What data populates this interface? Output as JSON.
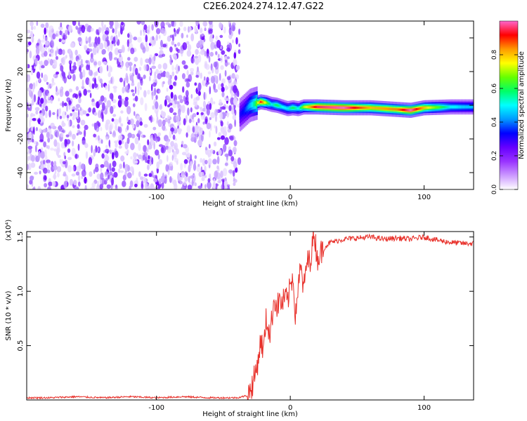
{
  "title": "C2E6.2024.274.12.47.G22",
  "chart_data": [
    {
      "type": "heatmap",
      "title": "C2E6.2024.274.12.47.G22",
      "xlabel": "Height of straight line (km)",
      "ylabel": "Frequency (Hz)",
      "xlim": [
        -197,
        137
      ],
      "ylim": [
        -50,
        50
      ],
      "x_ticks": [
        -100,
        0,
        100
      ],
      "x_tick_labels": [
        "-100",
        "0",
        "100"
      ],
      "y_ticks": [
        -40,
        -20,
        0,
        20,
        40
      ],
      "y_tick_labels": [
        "-40",
        "-20",
        "0",
        "20",
        "40"
      ],
      "grid": false,
      "noise_region": {
        "x_range": [
          -197,
          -38
        ],
        "y_range": [
          -50,
          50
        ],
        "amplitude_range": [
          0.0,
          0.15
        ]
      },
      "signal_ridge": {
        "x": [
          -38,
          -34,
          -30,
          -26,
          -22,
          -18,
          -14,
          -10,
          -6,
          -2,
          2,
          6,
          10,
          20,
          40,
          60,
          80,
          90,
          100,
          120,
          137
        ],
        "frequency": [
          -6,
          -3,
          0,
          1,
          2,
          1.5,
          0.5,
          0,
          -1,
          -2,
          -1.5,
          -2,
          -1,
          -1,
          -1.5,
          -1.5,
          -2.5,
          -3,
          -1.5,
          -1,
          -1
        ],
        "peak_amplitude": [
          0.3,
          0.35,
          0.45,
          0.6,
          0.9,
          0.7,
          0.5,
          0.6,
          0.5,
          0.5,
          0.6,
          0.5,
          0.7,
          0.95,
          1.0,
          0.8,
          0.85,
          1.0,
          0.8,
          0.5,
          0.45
        ]
      },
      "colorbar": {
        "label": "Normalized spectral amplitude",
        "range": [
          0,
          1
        ],
        "ticks": [
          0.0,
          0.2,
          0.4,
          0.6,
          0.8
        ],
        "tick_labels": [
          "0.0",
          "0.2",
          "0.4",
          "0.6",
          "0.8"
        ],
        "colormap": [
          "#ffffff",
          "#cc99ff",
          "#9933ff",
          "#6600ff",
          "#0000ff",
          "#0099ff",
          "#00ffff",
          "#00ff66",
          "#66ff00",
          "#ffff00",
          "#ff9900",
          "#ff0000",
          "#ff66cc"
        ]
      }
    },
    {
      "type": "line",
      "xlabel": "Height of straight line (km)",
      "ylabel": "SNR (10 * v/v)",
      "y_multiplier_label": "(x10⁴)",
      "xlim": [
        -197,
        137
      ],
      "ylim": [
        0,
        1.55
      ],
      "x_ticks": [
        -100,
        0,
        100
      ],
      "x_tick_labels": [
        "-100",
        "0",
        "100"
      ],
      "y_ticks": [
        0.5,
        1.0,
        1.5
      ],
      "y_tick_labels": [
        "0.5",
        "1.0",
        "1.5"
      ],
      "grid": false,
      "series": [
        {
          "color": "#e8302a",
          "x": [
            -197,
            -180,
            -160,
            -140,
            -120,
            -100,
            -80,
            -60,
            -40,
            -32,
            -28,
            -25,
            -22,
            -20,
            -18,
            -15,
            -12,
            -10,
            -8,
            -6,
            -4,
            -2,
            0,
            2,
            4,
            6,
            8,
            10,
            12,
            15,
            18,
            20,
            25,
            30,
            40,
            50,
            60,
            70,
            80,
            90,
            100,
            110,
            120,
            130,
            137
          ],
          "y": [
            0.02,
            0.02,
            0.03,
            0.02,
            0.03,
            0.02,
            0.03,
            0.02,
            0.02,
            0.04,
            0.15,
            0.3,
            0.55,
            0.45,
            0.75,
            0.6,
            0.95,
            0.85,
            0.92,
            0.88,
            0.95,
            0.9,
            1.05,
            1.15,
            0.75,
            1.1,
            1.2,
            1.0,
            1.25,
            1.3,
            1.55,
            1.3,
            1.4,
            1.45,
            1.48,
            1.49,
            1.5,
            1.48,
            1.49,
            1.48,
            1.5,
            1.47,
            1.45,
            1.44,
            1.44
          ]
        }
      ]
    }
  ]
}
